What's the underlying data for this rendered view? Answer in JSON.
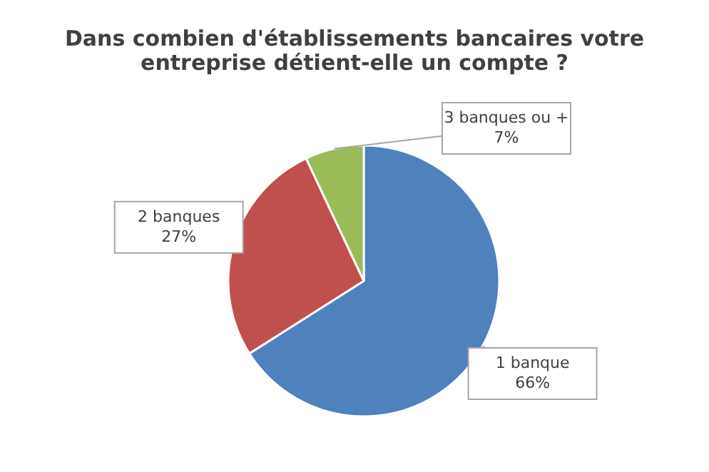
{
  "chart_data": {
    "type": "pie",
    "title": "Dans combien d'établissements bancaires votre entreprise détient-elle un compte ?",
    "categories": [
      "1 banque",
      "2 banques",
      "3 banques ou +"
    ],
    "values": [
      66,
      27,
      7
    ],
    "colors": [
      "#4f81bd",
      "#c0504d",
      "#9bbb59"
    ],
    "value_labels": [
      "66%",
      "27%",
      "7%"
    ],
    "legend": false
  }
}
